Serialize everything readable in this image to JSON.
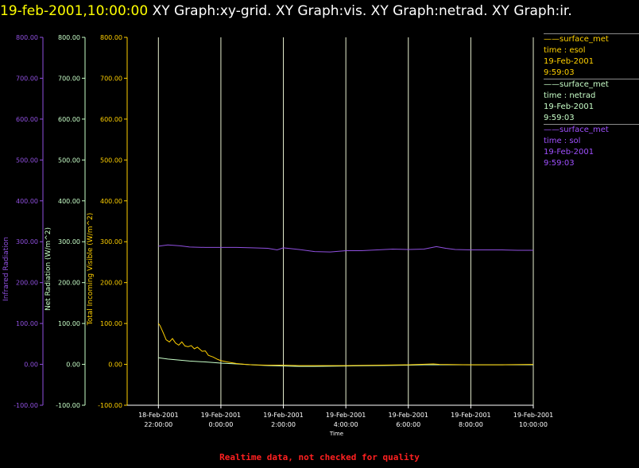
{
  "title": {
    "datetime": "19-feb-2001,10:00:00",
    "graphs": "XY Graph:xy-grid.  XY Graph:vis.  XY Graph:netrad.  XY Graph:ir."
  },
  "legend": [
    {
      "name": "surface_met",
      "field": "time : esol",
      "date": "19-Feb-2001",
      "time": "9:59:03",
      "color": "#ffd000"
    },
    {
      "name": "surface_met",
      "field": "time : netrad",
      "date": "19-Feb-2001",
      "time": "9:59:03",
      "color": "#c8ffc8"
    },
    {
      "name": "surface_met",
      "field": "time : sol",
      "date": "19-Feb-2001",
      "time": "9:59:03",
      "color": "#a050ff"
    }
  ],
  "footer": "Realtime data, not checked for quality",
  "colors": {
    "ir": "#9050e0",
    "netrad": "#c8ffc8",
    "vis": "#ffd000",
    "grid": "#ffffff",
    "footer": "#ff2020"
  },
  "chart_data": {
    "type": "line",
    "xlabel": "Time",
    "xlim": [
      -3,
      10
    ],
    "x_ticks": [
      {
        "x": -2,
        "date": "18-Feb-2001",
        "time": "22:00:00"
      },
      {
        "x": 0,
        "date": "19-Feb-2001",
        "time": "0:00:00"
      },
      {
        "x": 2,
        "date": "19-Feb-2001",
        "time": "2:00:00"
      },
      {
        "x": 4,
        "date": "19-Feb-2001",
        "time": "4:00:00"
      },
      {
        "x": 6,
        "date": "19-Feb-2001",
        "time": "6:00:00"
      },
      {
        "x": 8,
        "date": "19-Feb-2001",
        "time": "8:00:00"
      },
      {
        "x": 10,
        "date": "19-Feb-2001",
        "time": "10:00:00"
      }
    ],
    "ylim": [
      -100,
      800
    ],
    "y_tick_values": [
      -100,
      0,
      100,
      200,
      300,
      400,
      500,
      600,
      700,
      800
    ],
    "y_tick_labels": [
      "-100.00",
      "0.00",
      "100.00",
      "200.00",
      "300.00",
      "400.00",
      "500.00",
      "600.00",
      "700.00",
      "800.00"
    ],
    "axes": [
      {
        "id": "ir",
        "label": "Infrared Radiation",
        "color": "#9050e0"
      },
      {
        "id": "netrad",
        "label": "Net Radiation (W/m^2)",
        "color": "#c8ffc8"
      },
      {
        "id": "vis",
        "label": "Total Incoming Visible (W/m^2)",
        "color": "#ffd000"
      }
    ],
    "series": [
      {
        "axis": "ir",
        "color": "#9050e0",
        "x": [
          -2.0,
          -1.7,
          -1.3,
          -1.0,
          -0.5,
          0.0,
          0.5,
          1.0,
          1.5,
          1.8,
          2.0,
          2.5,
          3.0,
          3.5,
          4.0,
          4.5,
          5.0,
          5.5,
          6.0,
          6.5,
          6.9,
          7.2,
          7.5,
          8.0,
          8.5,
          9.0,
          9.5,
          10.0
        ],
        "y": [
          289,
          292,
          290,
          287,
          286,
          286,
          286,
          285,
          284,
          280,
          285,
          281,
          276,
          275,
          278,
          278,
          280,
          282,
          281,
          282,
          288,
          284,
          281,
          280,
          280,
          280,
          279,
          279
        ]
      },
      {
        "axis": "netrad",
        "color": "#c8ffc8",
        "x": [
          -2.0,
          -1.7,
          -1.0,
          -0.5,
          0.0,
          0.5,
          1.0,
          1.5,
          2.0,
          2.5,
          3.0,
          4.0,
          5.0,
          6.0,
          6.5,
          7.0,
          8.0,
          9.0,
          10.0
        ],
        "y": [
          16,
          13,
          8,
          6,
          3,
          1,
          -1,
          -3,
          -4,
          -5,
          -5,
          -4,
          -3,
          -2,
          -1,
          -1,
          -1,
          -1,
          -1
        ]
      },
      {
        "axis": "vis",
        "color": "#ffd000",
        "x": [
          -2.0,
          -1.95,
          -1.85,
          -1.75,
          -1.65,
          -1.55,
          -1.45,
          -1.35,
          -1.25,
          -1.15,
          -1.05,
          -0.95,
          -0.85,
          -0.75,
          -0.6,
          -0.5,
          -0.4,
          -0.25,
          -0.1,
          0.0,
          0.2,
          0.5,
          0.8,
          1.0,
          1.5,
          2.0,
          2.5,
          3.0,
          4.0,
          5.0,
          6.0,
          6.8,
          7.0,
          8.0,
          9.0,
          10.0
        ],
        "y": [
          100,
          95,
          78,
          60,
          55,
          63,
          52,
          47,
          55,
          45,
          43,
          46,
          38,
          42,
          32,
          33,
          22,
          18,
          12,
          9,
          6,
          2,
          0,
          -1,
          -2,
          -2,
          -3,
          -3,
          -3,
          -2,
          -1,
          1,
          0,
          -1,
          -1,
          0
        ]
      }
    ]
  }
}
